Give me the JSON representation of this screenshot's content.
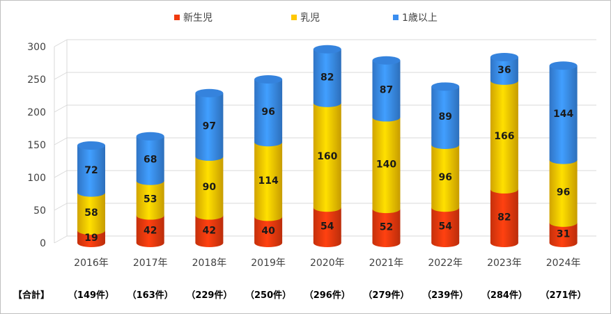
{
  "chart_data": {
    "type": "bar",
    "stacked": true,
    "style": "3d-cylinder",
    "categories": [
      "2016年",
      "2017年",
      "2018年",
      "2019年",
      "2020年",
      "2021年",
      "2022年",
      "2023年",
      "2024年"
    ],
    "series": [
      {
        "name": "新生児",
        "color": "#f03a0e",
        "values": [
          19,
          42,
          42,
          40,
          54,
          52,
          54,
          82,
          31
        ]
      },
      {
        "name": "乳児",
        "color": "#ffc800",
        "values": [
          58,
          53,
          90,
          114,
          160,
          140,
          96,
          166,
          96
        ]
      },
      {
        "name": "1歳以上",
        "color": "#3a8ef0",
        "values": [
          72,
          68,
          97,
          96,
          82,
          87,
          89,
          36,
          144
        ]
      }
    ],
    "ylim": [
      0,
      300
    ],
    "yticks": [
      0,
      50,
      100,
      150,
      200,
      250,
      300
    ],
    "grid": true,
    "legend_position": "top",
    "totals_header": "【合計】",
    "totals": [
      "（149件）",
      "（163件）",
      "（229件）",
      "（250件）",
      "（296件）",
      "（279件）",
      "（239件）",
      "（284件）",
      "（271件）"
    ]
  }
}
